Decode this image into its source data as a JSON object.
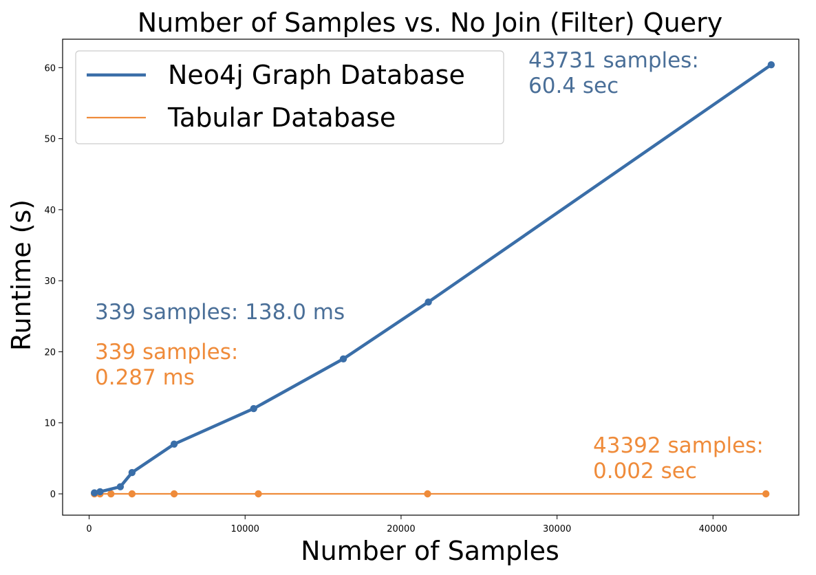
{
  "chart_data": {
    "type": "line",
    "title": "Number of Samples vs. No Join (Filter) Query",
    "xlabel": "Number of Samples",
    "ylabel": "Runtime (s)",
    "xlim": [
      -1700,
      45500
    ],
    "ylim": [
      -3,
      64
    ],
    "xticks": [
      0,
      10000,
      20000,
      30000,
      40000
    ],
    "yticks": [
      0,
      10,
      20,
      30,
      40,
      50,
      60
    ],
    "grid": false,
    "legend_position": "top-left",
    "series": [
      {
        "name": "Neo4j Graph Database",
        "color": "#3a6ea8",
        "line_width": "thick",
        "x": [
          339,
          700,
          2000,
          2750,
          5450,
          10550,
          16300,
          21750,
          43731
        ],
        "y": [
          0.138,
          0.3,
          1.0,
          3.0,
          7.0,
          12.0,
          19.0,
          27.0,
          60.4
        ]
      },
      {
        "name": "Tabular Database",
        "color": "#ef8b3a",
        "line_width": "thin",
        "x": [
          339,
          700,
          1400,
          2750,
          5450,
          10850,
          21700,
          43392
        ],
        "y": [
          0.000287,
          0.0003,
          0.0004,
          0.0005,
          0.0007,
          0.001,
          0.0013,
          0.002
        ]
      }
    ],
    "annotations": [
      {
        "lines": [
          "43731 samples:",
          "60.4 sec"
        ],
        "color": "#4a6f98",
        "anchor": "top-right"
      },
      {
        "lines": [
          "339 samples: 138.0 ms"
        ],
        "color": "#4a6f98",
        "anchor": "middle-left"
      },
      {
        "lines": [
          "339 samples:",
          "0.287 ms"
        ],
        "color": "#ef8b3a",
        "anchor": "lower-left"
      },
      {
        "lines": [
          "43392 samples:",
          "0.002 sec"
        ],
        "color": "#ef8b3a",
        "anchor": "bottom-right"
      }
    ]
  }
}
